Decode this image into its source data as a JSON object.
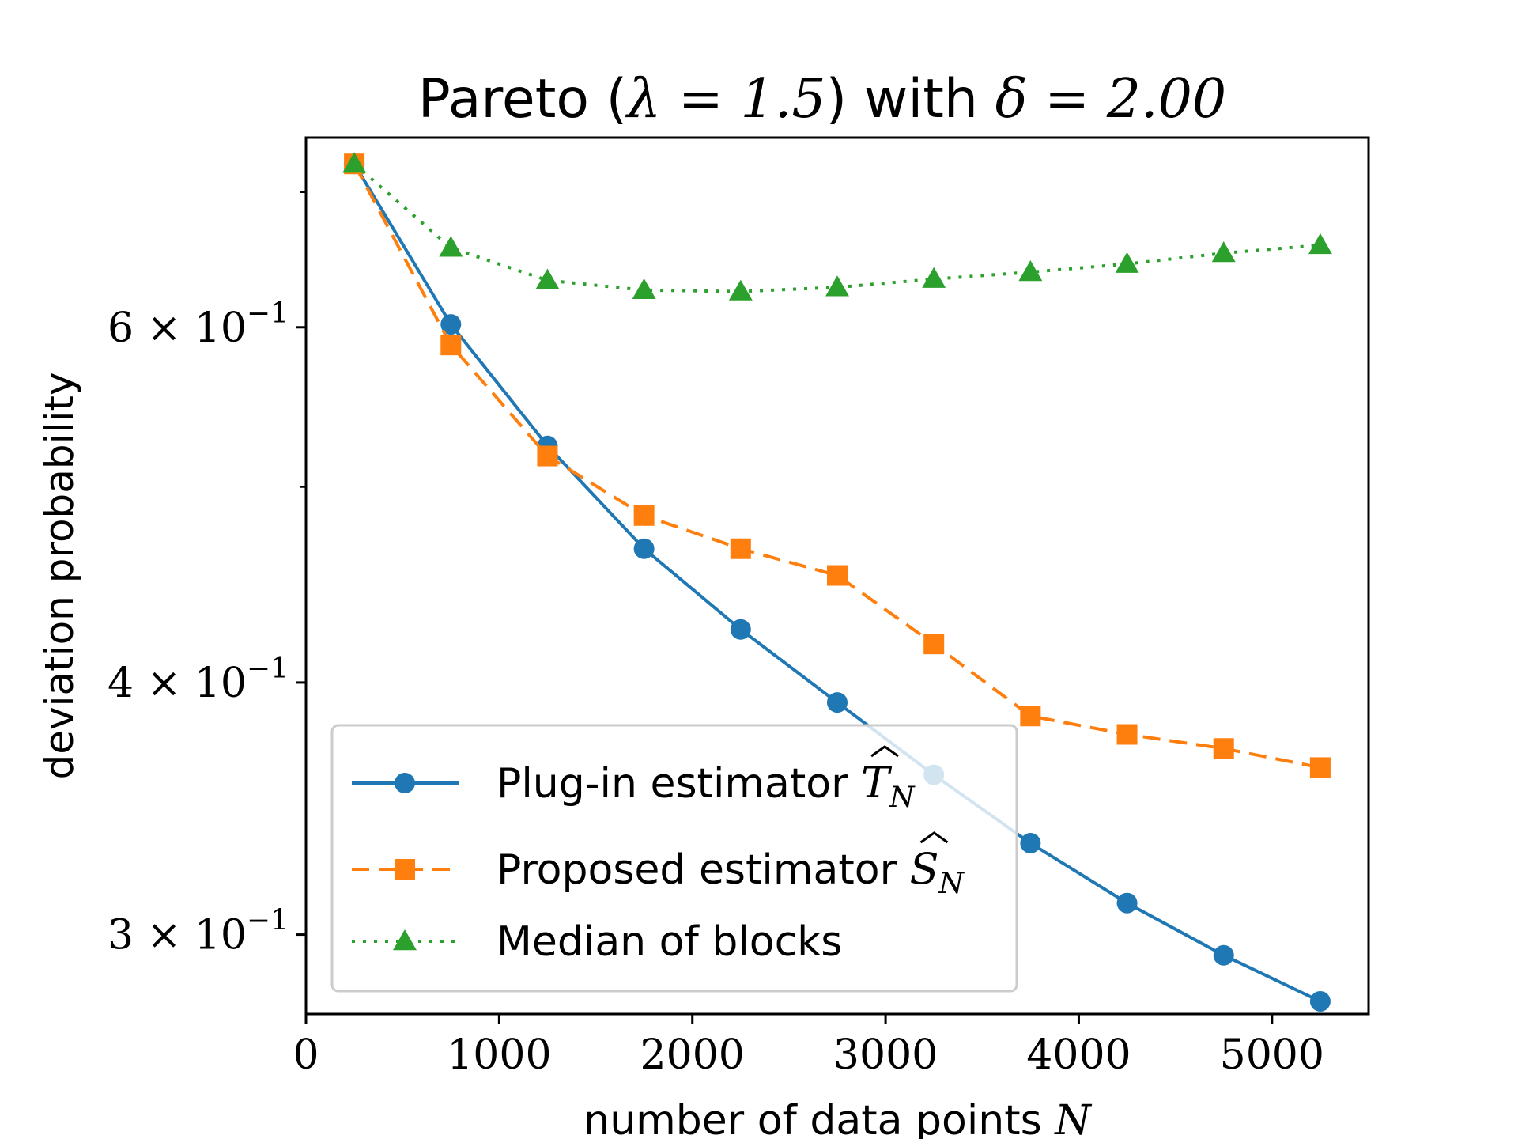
{
  "chart_data": {
    "type": "line",
    "title_prefix": "Pareto (",
    "title_lambda": "λ = 1.5",
    "title_middle": ") with ",
    "title_delta": "δ = 2.00",
    "xlabel": "number of data points ",
    "xlabel_var": "N",
    "ylabel": "deviation probability",
    "xlim": [
      0,
      5500
    ],
    "ylim": [
      0.274,
      0.745
    ],
    "yscale": "log",
    "x_ticks": [
      {
        "value": 0,
        "label": "0"
      },
      {
        "value": 1000,
        "label": "1000"
      },
      {
        "value": 2000,
        "label": "2000"
      },
      {
        "value": 3000,
        "label": "3000"
      },
      {
        "value": 4000,
        "label": "4000"
      },
      {
        "value": 5000,
        "label": "5000"
      }
    ],
    "y_major_ticks": [
      {
        "value": 0.3,
        "mant": "3",
        "exp": "−1"
      },
      {
        "value": 0.4,
        "mant": "4",
        "exp": "−1"
      },
      {
        "value": 0.6,
        "mant": "6",
        "exp": "−1"
      }
    ],
    "y_minor_ticks": [
      0.5,
      0.7
    ],
    "x": [
      250,
      750,
      1250,
      1750,
      2250,
      2750,
      3250,
      3750,
      4250,
      4750,
      5250
    ],
    "series": [
      {
        "name": "Plug-in estimator",
        "symbol": "T",
        "subscript": "N",
        "color": "#1f77b4",
        "marker": "circle",
        "dash": "",
        "values": [
          0.723,
          0.602,
          0.524,
          0.466,
          0.425,
          0.391,
          0.36,
          0.333,
          0.311,
          0.293,
          0.278
        ]
      },
      {
        "name": "Proposed estimator",
        "symbol": "S",
        "subscript": "N",
        "color": "#ff7f0e",
        "marker": "square",
        "dash": "22,12",
        "values": [
          0.723,
          0.588,
          0.518,
          0.484,
          0.466,
          0.452,
          0.418,
          0.385,
          0.377,
          0.371,
          0.363
        ]
      },
      {
        "name": "Median of blocks",
        "symbol": "",
        "subscript": "",
        "color": "#2ca02c",
        "marker": "triangle",
        "dash": "4,10",
        "values": [
          0.723,
          0.657,
          0.633,
          0.626,
          0.625,
          0.628,
          0.634,
          0.639,
          0.645,
          0.653,
          0.659
        ]
      }
    ],
    "legend_position": "lower-left"
  }
}
